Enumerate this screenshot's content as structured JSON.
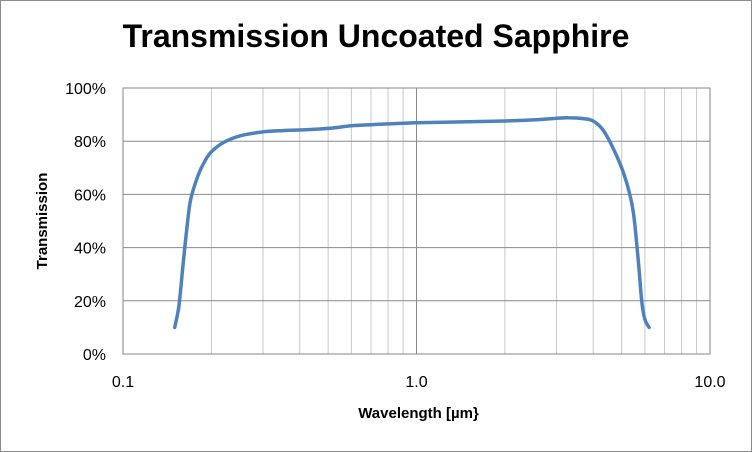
{
  "chart_data": {
    "type": "line",
    "title": "Transmission Uncoated Sapphire",
    "xlabel": "Wavelength [µm}",
    "ylabel": "Transmission",
    "xscale": "log",
    "xlim": [
      0.1,
      10.0
    ],
    "ylim": [
      0,
      100
    ],
    "x_ticks": [
      "0.1",
      "1.0",
      "10.0"
    ],
    "y_ticks": [
      "0%",
      "20%",
      "40%",
      "60%",
      "80%",
      "100%"
    ],
    "grid": true,
    "legend": "none",
    "series": [
      {
        "color": "#4F81BD",
        "points": [
          [
            0.15,
            10
          ],
          [
            0.155,
            18
          ],
          [
            0.16,
            33
          ],
          [
            0.165,
            47
          ],
          [
            0.17,
            58
          ],
          [
            0.18,
            67
          ],
          [
            0.19,
            72.5
          ],
          [
            0.2,
            76
          ],
          [
            0.22,
            79.5
          ],
          [
            0.25,
            82
          ],
          [
            0.3,
            83.5
          ],
          [
            0.35,
            84
          ],
          [
            0.4,
            84.2
          ],
          [
            0.5,
            84.8
          ],
          [
            0.6,
            85.8
          ],
          [
            0.7,
            86.2
          ],
          [
            0.8,
            86.5
          ],
          [
            1.0,
            86.9
          ],
          [
            1.5,
            87.3
          ],
          [
            2.0,
            87.6
          ],
          [
            2.5,
            88.0
          ],
          [
            3.0,
            88.6
          ],
          [
            3.3,
            88.8
          ],
          [
            3.7,
            88.5
          ],
          [
            4.0,
            87.6
          ],
          [
            4.3,
            84.5
          ],
          [
            4.6,
            79
          ],
          [
            5.0,
            70
          ],
          [
            5.3,
            61
          ],
          [
            5.5,
            52
          ],
          [
            5.7,
            35
          ],
          [
            5.85,
            20
          ],
          [
            6.0,
            13
          ],
          [
            6.2,
            10
          ]
        ]
      }
    ]
  }
}
